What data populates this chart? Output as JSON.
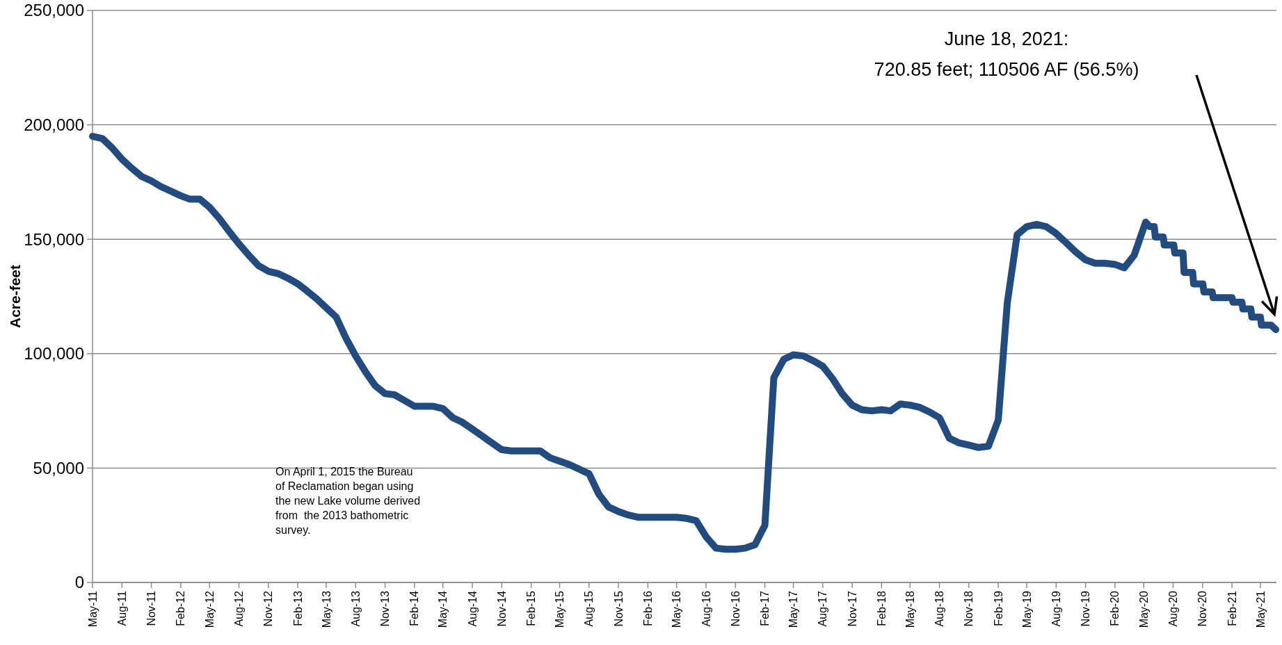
{
  "chart_data": {
    "type": "line",
    "ylabel": "Acre-feet",
    "annotations": [
      "June 18, 2021:\n720.85 feet; 110506 AF (56.5%)",
      "On April 1, 2015 the Bureau\nof Reclamation began using\nthe new Lake volume derived\nfrom  the 2013 bathometric\nsurvey."
    ],
    "xlim": [
      "2011-05-01",
      "2021-06-20"
    ],
    "xticks": [
      {
        "value": "2011-05",
        "label": "May-11"
      },
      {
        "value": "2011-08",
        "label": "Aug-11"
      },
      {
        "value": "2011-11",
        "label": "Nov-11"
      },
      {
        "value": "2012-02",
        "label": "Feb-12"
      },
      {
        "value": "2012-05",
        "label": "May-12"
      },
      {
        "value": "2012-08",
        "label": "Aug-12"
      },
      {
        "value": "2012-11",
        "label": "Nov-12"
      },
      {
        "value": "2013-02",
        "label": "Feb-13"
      },
      {
        "value": "2013-05",
        "label": "May-13"
      },
      {
        "value": "2013-08",
        "label": "Aug-13"
      },
      {
        "value": "2013-11",
        "label": "Nov-13"
      },
      {
        "value": "2014-02",
        "label": "Feb-14"
      },
      {
        "value": "2014-05",
        "label": "May-14"
      },
      {
        "value": "2014-08",
        "label": "Aug-14"
      },
      {
        "value": "2014-11",
        "label": "Nov-14"
      },
      {
        "value": "2015-02",
        "label": "Feb-15"
      },
      {
        "value": "2015-05",
        "label": "May-15"
      },
      {
        "value": "2015-08",
        "label": "Aug-15"
      },
      {
        "value": "2015-11",
        "label": "Nov-15"
      },
      {
        "value": "2016-02",
        "label": "Feb-16"
      },
      {
        "value": "2016-05",
        "label": "May-16"
      },
      {
        "value": "2016-08",
        "label": "Aug-16"
      },
      {
        "value": "2016-11",
        "label": "Nov-16"
      },
      {
        "value": "2017-02",
        "label": "Feb-17"
      },
      {
        "value": "2017-05",
        "label": "May-17"
      },
      {
        "value": "2017-08",
        "label": "Aug-17"
      },
      {
        "value": "2017-11",
        "label": "Nov-17"
      },
      {
        "value": "2018-02",
        "label": "Feb-18"
      },
      {
        "value": "2018-05",
        "label": "May-18"
      },
      {
        "value": "2018-08",
        "label": "Aug-18"
      },
      {
        "value": "2018-11",
        "label": "Nov-18"
      },
      {
        "value": "2019-02",
        "label": "Feb-19"
      },
      {
        "value": "2019-05",
        "label": "May-19"
      },
      {
        "value": "2019-08",
        "label": "Aug-19"
      },
      {
        "value": "2019-11",
        "label": "Nov-19"
      },
      {
        "value": "2020-02",
        "label": "Feb-20"
      },
      {
        "value": "2020-05",
        "label": "May-20"
      },
      {
        "value": "2020-08",
        "label": "Aug-20"
      },
      {
        "value": "2020-11",
        "label": "Nov-20"
      },
      {
        "value": "2021-02",
        "label": "Feb-21"
      },
      {
        "value": "2021-05",
        "label": "May-21"
      }
    ],
    "ylim": [
      0,
      250000
    ],
    "yticks": [
      {
        "value": 0,
        "label": "0"
      },
      {
        "value": 50000,
        "label": "50,000"
      },
      {
        "value": 100000,
        "label": "100,000"
      },
      {
        "value": 150000,
        "label": "150,000"
      },
      {
        "value": 200000,
        "label": "200,000"
      },
      {
        "value": 250000,
        "label": "250,000"
      }
    ],
    "grid": "y",
    "marker": "none",
    "line_style": "solid",
    "series": [
      {
        "color": "#224b80",
        "x": [
          "2011-05",
          "2011-06",
          "2011-07",
          "2011-08",
          "2011-09",
          "2011-10",
          "2011-11",
          "2011-12",
          "2012-01",
          "2012-02",
          "2012-03",
          "2012-04",
          "2012-05",
          "2012-06",
          "2012-07",
          "2012-08",
          "2012-09",
          "2012-10",
          "2012-11",
          "2012-12",
          "2013-01",
          "2013-02",
          "2013-03",
          "2013-04",
          "2013-05",
          "2013-06",
          "2013-07",
          "2013-08",
          "2013-09",
          "2013-10",
          "2013-11",
          "2013-12",
          "2014-01",
          "2014-02",
          "2014-03",
          "2014-04",
          "2014-05",
          "2014-06",
          "2014-07",
          "2014-08",
          "2014-09",
          "2014-10",
          "2014-11",
          "2014-12",
          "2015-01",
          "2015-02",
          "2015-03",
          "2015-04",
          "2015-05",
          "2015-06",
          "2015-07",
          "2015-08",
          "2015-09",
          "2015-10",
          "2015-11",
          "2015-12",
          "2016-01",
          "2016-02",
          "2016-03",
          "2016-04",
          "2016-05",
          "2016-06",
          "2016-07",
          "2016-08",
          "2016-09",
          "2016-10",
          "2016-11",
          "2016-12",
          "2017-01",
          "2017-02",
          "2017-03",
          "2017-04",
          "2017-05",
          "2017-06",
          "2017-07",
          "2017-08",
          "2017-09",
          "2017-10",
          "2017-11",
          "2017-12",
          "2018-01",
          "2018-02",
          "2018-03",
          "2018-04",
          "2018-05",
          "2018-06",
          "2018-07",
          "2018-08",
          "2018-09",
          "2018-10",
          "2018-11",
          "2018-12",
          "2019-01",
          "2019-02",
          "2019-03",
          "2019-04",
          "2019-05",
          "2019-06",
          "2019-07",
          "2019-08",
          "2019-09",
          "2019-10",
          "2019-11",
          "2019-12",
          "2020-01",
          "2020-02",
          "2020-03",
          "2020-04",
          "2020-05-07",
          "2020-05-20",
          "2020-06-03",
          "2020-06-06",
          "2020-07-01",
          "2020-07-04",
          "2020-08-03",
          "2020-08-06",
          "2020-09-01",
          "2020-09-04",
          "2020-10-01",
          "2020-10-04",
          "2020-11-02",
          "2020-11-05",
          "2020-12-01",
          "2020-12-04",
          "2021-02-01",
          "2021-02-04",
          "2021-03-04",
          "2021-03-07",
          "2021-04-01",
          "2021-04-04",
          "2021-05-01",
          "2021-05-04",
          "2021-06-03",
          "2021-06-18"
        ],
        "values": [
          195000,
          194000,
          190000,
          185000,
          181000,
          177500,
          175500,
          173000,
          171000,
          169000,
          167500,
          167500,
          164000,
          159000,
          153500,
          148000,
          143000,
          138500,
          136000,
          135000,
          133000,
          130500,
          127500,
          124000,
          120000,
          116000,
          107000,
          99000,
          92000,
          86000,
          82500,
          82000,
          79500,
          77000,
          77000,
          77000,
          76000,
          72000,
          70000,
          67000,
          64000,
          61000,
          58000,
          57500,
          57500,
          57500,
          57500,
          54500,
          53000,
          51500,
          49500,
          47500,
          38500,
          33000,
          31000,
          29500,
          28500,
          28500,
          28500,
          28500,
          28500,
          28000,
          27000,
          20000,
          15000,
          14500,
          14500,
          15000,
          16500,
          25000,
          89500,
          97500,
          99500,
          99000,
          97000,
          94500,
          89000,
          82500,
          77500,
          75500,
          75000,
          75500,
          75000,
          78000,
          77500,
          76500,
          74500,
          72000,
          63000,
          61000,
          60000,
          59000,
          59500,
          71000,
          122000,
          152000,
          155500,
          156500,
          155500,
          152500,
          148500,
          144500,
          141000,
          139500,
          139500,
          139000,
          137500,
          143000,
          157500,
          155500,
          155500,
          151000,
          151000,
          147500,
          147500,
          144000,
          144000,
          135500,
          135500,
          130500,
          130500,
          127000,
          127000,
          124500,
          124500,
          122500,
          122500,
          119500,
          119500,
          116000,
          116000,
          112500,
          112500,
          110500
        ]
      }
    ]
  }
}
